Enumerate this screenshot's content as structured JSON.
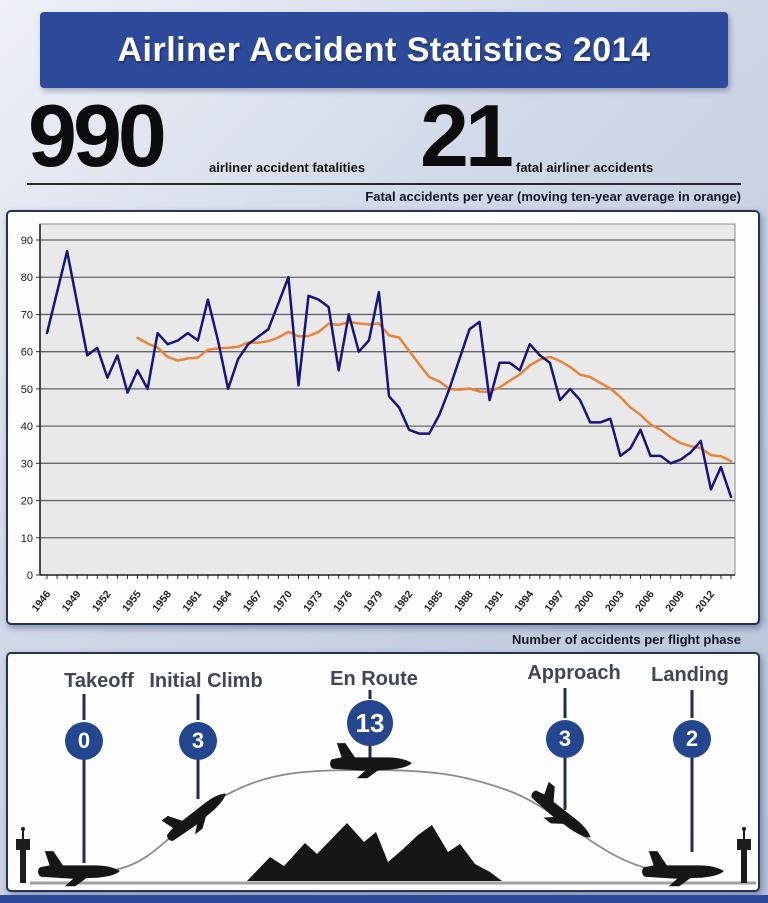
{
  "header": {
    "title": "Airliner Accident Statistics 2014",
    "bg_color": "#2d4a9b"
  },
  "stats": [
    {
      "value": "990",
      "label": "airliner accident fatalities"
    },
    {
      "value": "21",
      "label": "fatal airliner accidents"
    }
  ],
  "chart_section": {
    "caption": "Fatal accidents per year (moving ten-year average in orange)"
  },
  "phase_section": {
    "caption": "Number of accidents per flight phase",
    "phases": [
      {
        "label": "Takeoff",
        "count": "0"
      },
      {
        "label": "Initial Climb",
        "count": "3"
      },
      {
        "label": "En Route",
        "count": "13"
      },
      {
        "label": "Approach",
        "count": "3"
      },
      {
        "label": "Landing",
        "count": "2"
      }
    ]
  },
  "chart_data": {
    "type": "line",
    "title": "Fatal accidents per year (moving ten-year average in orange)",
    "xlabel": "",
    "ylabel": "",
    "ylim": [
      0,
      90
    ],
    "ytick_step": 10,
    "xtick_label_step": 3,
    "grid": true,
    "plot_bg": "#e9e9e9",
    "x": [
      1946,
      1947,
      1948,
      1949,
      1950,
      1951,
      1952,
      1953,
      1954,
      1955,
      1956,
      1957,
      1958,
      1959,
      1960,
      1961,
      1962,
      1963,
      1964,
      1965,
      1966,
      1967,
      1968,
      1969,
      1970,
      1971,
      1972,
      1973,
      1974,
      1975,
      1976,
      1977,
      1978,
      1979,
      1980,
      1981,
      1982,
      1983,
      1984,
      1985,
      1986,
      1987,
      1988,
      1989,
      1990,
      1991,
      1992,
      1993,
      1994,
      1995,
      1996,
      1997,
      1998,
      1999,
      2000,
      2001,
      2002,
      2003,
      2004,
      2005,
      2006,
      2007,
      2008,
      2009,
      2010,
      2011,
      2012,
      2013,
      2014
    ],
    "series": [
      {
        "name": "Fatal accidents per year",
        "color": "#15157b",
        "start_year": 1946,
        "values": [
          65,
          76,
          87,
          73,
          59,
          61,
          53,
          59,
          49,
          55,
          50,
          65,
          62,
          63,
          65,
          63,
          74,
          63,
          50,
          58,
          62,
          64,
          66,
          73,
          80,
          51,
          75,
          74,
          72,
          55,
          70,
          60,
          63,
          76,
          48,
          45,
          39,
          38,
          38,
          43,
          50,
          58,
          66,
          68,
          47,
          57,
          57,
          55,
          62,
          59,
          57,
          47,
          50,
          47,
          41,
          41,
          42,
          32,
          34,
          39,
          32,
          32,
          30,
          31,
          33,
          36,
          23,
          29,
          21
        ]
      },
      {
        "name": "Moving ten-year average",
        "color": "#e8833a",
        "start_year": 1955,
        "values": [
          63.7,
          62.2,
          61.1,
          58.6,
          57.6,
          58.2,
          58.4,
          60.5,
          60.9,
          61.0,
          61.3,
          62.5,
          62.4,
          62.8,
          63.8,
          65.3,
          64.1,
          64.2,
          65.3,
          67.5,
          67.2,
          68.0,
          67.6,
          67.3,
          67.6,
          64.4,
          63.8,
          60.2,
          56.6,
          53.2,
          52.0,
          50.0,
          49.8,
          50.1,
          49.3,
          49.2,
          50.4,
          52.2,
          53.9,
          56.3,
          57.9,
          58.6,
          57.5,
          55.9,
          53.8,
          53.2,
          51.6,
          50.1,
          47.8,
          45.0,
          43.0,
          40.5,
          39.0,
          37.0,
          35.4,
          34.6,
          34.1,
          32.2,
          31.9,
          30.6
        ]
      }
    ]
  },
  "colors": {
    "banner_blue": "#2d4a9b",
    "circle_blue": "#24468e",
    "line_blue": "#15157b",
    "line_orange": "#e8833a",
    "silhouette": "#161616"
  }
}
